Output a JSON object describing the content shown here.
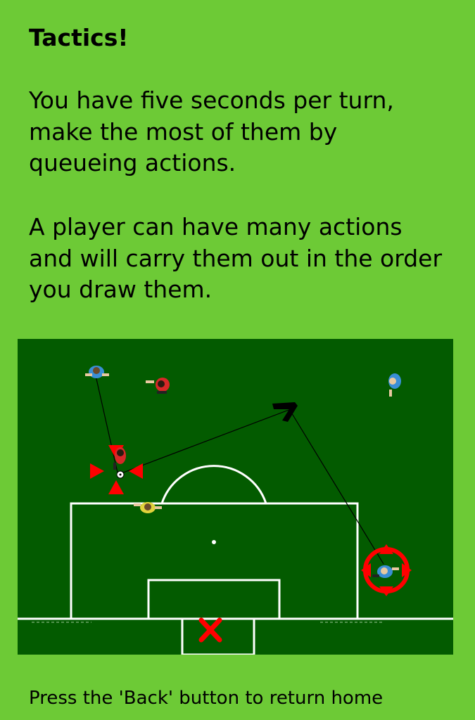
{
  "tutorial": {
    "title": "Tactics!",
    "paragraph1": "You have five seconds per turn, make the most of them by queueing actions.",
    "paragraph2": "A player can have many actions and will carry them out in the order you draw them.",
    "footer": "Press the 'Back' button to return home"
  },
  "colors": {
    "background": "#6dca36",
    "pitch": "#035b00",
    "lines": "#ffffff",
    "marker": "#ff0000",
    "team_blue": "#3a8fd6",
    "team_red": "#d62828",
    "goalkeeper_yellow": "#e0d23c"
  }
}
